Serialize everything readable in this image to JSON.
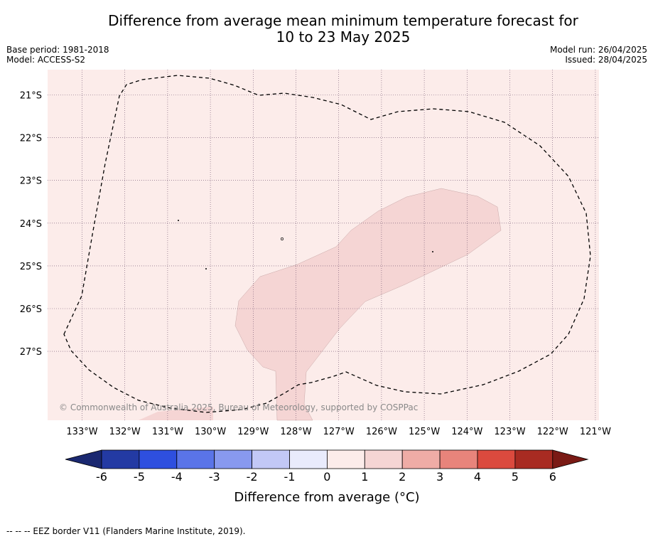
{
  "title_line1": "Difference from average mean minimum temperature forecast for",
  "title_line2": "10 to 23 May 2025",
  "base_period": "Base period: 1981-2018",
  "model": "Model: ACCESS-S2",
  "model_run": "Model run: 26/04/2025",
  "issued": "Issued: 28/04/2025",
  "copyright": "© Commonwealth of Australia 2025, Bureau of Meteorology, supported by COSPPac",
  "footnote": "-- -- -- EEZ border V11 (Flanders Marine Institute, 2019).",
  "lon_labels": [
    "133°W",
    "132°W",
    "131°W",
    "130°W",
    "129°W",
    "128°W",
    "127°W",
    "126°W",
    "125°W",
    "124°W",
    "123°W",
    "122°W",
    "121°W"
  ],
  "lat_labels": [
    "21°S",
    "22°S",
    "23°S",
    "24°S",
    "25°S",
    "26°S",
    "27°S"
  ],
  "colorbar": {
    "label": "Difference from average (°C)",
    "ticks": [
      "-6",
      "-5",
      "-4",
      "-3",
      "-2",
      "-1",
      "0",
      "1",
      "2",
      "3",
      "4",
      "5",
      "6"
    ],
    "colors": [
      "#233aa3",
      "#2e4fdf",
      "#5a74e8",
      "#8899ef",
      "#c2c8f6",
      "#e9ebfc",
      "#fcecea",
      "#f5d5d4",
      "#efaca6",
      "#e8847b",
      "#db4a3e",
      "#a82b22"
    ],
    "under_color": "#1a2870",
    "over_color": "#7a1a15"
  },
  "colors": {
    "background_class": "#fcecea",
    "anomaly_1_2": "#f5d5d4",
    "grid": "#6a4d6a"
  }
}
